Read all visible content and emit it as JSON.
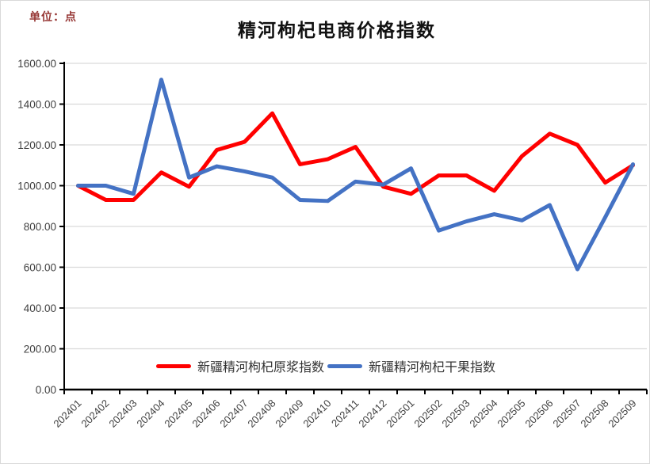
{
  "chart_data": {
    "type": "line",
    "title": "精河枸杞电商价格指数",
    "unit_label": "单位：点",
    "categories": [
      "202401",
      "202402",
      "202403",
      "202404",
      "202405",
      "202406",
      "202407",
      "202408",
      "202409",
      "202410",
      "202411",
      "202412",
      "202501",
      "202502",
      "202503",
      "202504",
      "202505",
      "202506",
      "202507",
      "202508",
      "202509"
    ],
    "series": [
      {
        "name": "新疆精河枸杞原浆指数",
        "color": "#FF0000",
        "values": [
          1000,
          930,
          930,
          1065,
          995,
          1175,
          1215,
          1355,
          1105,
          1130,
          1190,
          995,
          960,
          1050,
          1050,
          975,
          1145,
          1255,
          1200,
          1015,
          1100
        ]
      },
      {
        "name": "新疆精河枸杞干果指数",
        "color": "#4472C4",
        "values": [
          1000,
          1000,
          960,
          1520,
          1040,
          1095,
          1070,
          1040,
          930,
          925,
          1020,
          1005,
          1085,
          780,
          825,
          860,
          830,
          905,
          590,
          845,
          1105
        ]
      }
    ],
    "ylim": [
      0,
      1600
    ],
    "ytick_values": [
      0,
      200,
      400,
      600,
      800,
      1000,
      1200,
      1400,
      1600
    ],
    "ytick_labels": [
      "0.00",
      "200.00",
      "400.00",
      "600.00",
      "800.00",
      "1000.00",
      "1200.00",
      "1400.00",
      "1600.00"
    ],
    "xlabel": "",
    "ylabel": "",
    "grid": true,
    "legend_position": "bottom-inside",
    "styles": {
      "gridline_color": "#d9d9d9",
      "axis_color": "#000000",
      "tick_label_color": "#404040",
      "unit_label_color": "#963634",
      "line_width": 5
    }
  }
}
